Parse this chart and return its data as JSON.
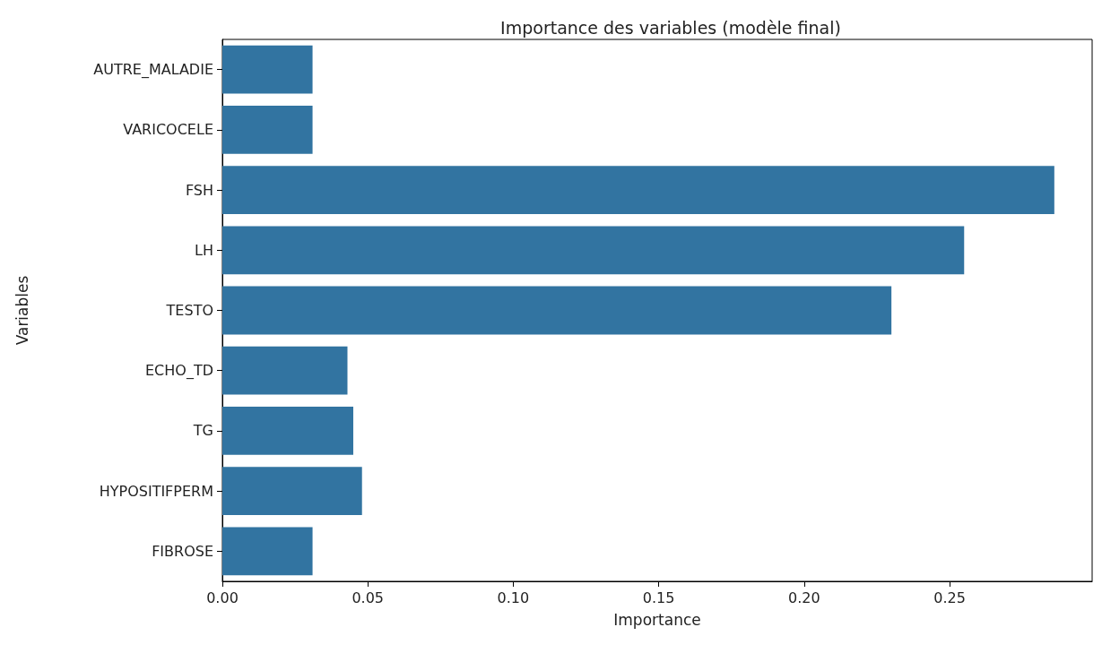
{
  "chart_data": {
    "type": "bar",
    "orientation": "horizontal",
    "title": "Importance des variables (modèle final)",
    "xlabel": "Importance",
    "ylabel": "Variables",
    "categories": [
      "AUTRE_MALADIE",
      "VARICOCELE",
      "FSH",
      "LH",
      "TESTO",
      "ECHO_TD",
      "TG",
      "HYPOSITIFPERM",
      "FIBROSE"
    ],
    "values": [
      0.031,
      0.031,
      0.286,
      0.255,
      0.23,
      0.043,
      0.045,
      0.048,
      0.031
    ],
    "color": "#3274a1",
    "xlim": [
      0,
      0.299
    ],
    "xticks": [
      {
        "value": 0,
        "label": "0.00"
      },
      {
        "value": 0.05,
        "label": "0.05"
      },
      {
        "value": 0.1,
        "label": "0.10"
      },
      {
        "value": 0.15,
        "label": "0.15"
      },
      {
        "value": 0.2,
        "label": "0.20"
      },
      {
        "value": 0.25,
        "label": "0.25"
      }
    ],
    "grid": false
  }
}
